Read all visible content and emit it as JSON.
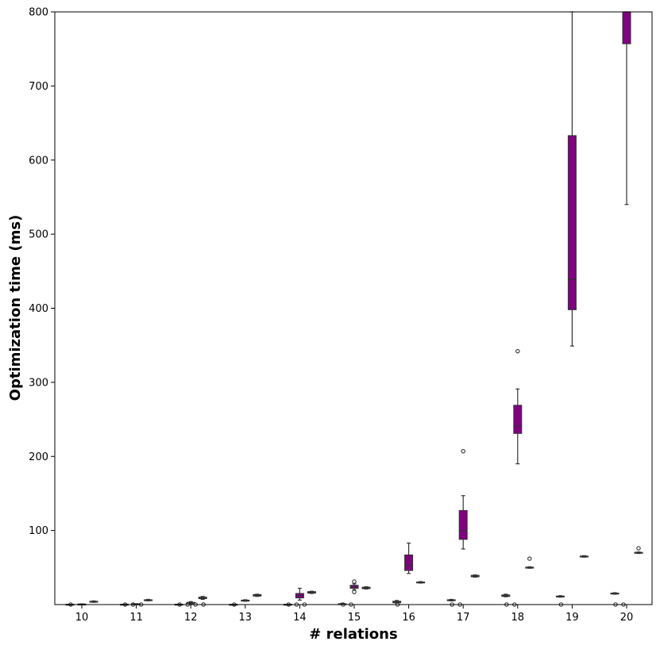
{
  "chart_data": {
    "type": "box",
    "xlabel": "# relations",
    "ylabel": "Optimization time (ms)",
    "ylim": [
      0,
      800
    ],
    "yticks": [
      100,
      200,
      300,
      400,
      500,
      600,
      700,
      800
    ],
    "categories": [
      "10",
      "11",
      "12",
      "13",
      "14",
      "15",
      "16",
      "17",
      "18",
      "19",
      "20"
    ],
    "grid": false,
    "box_color": "#800080",
    "edge_color": "#333333",
    "boxes": [
      {
        "group": "10",
        "q1": 0.2,
        "median": 0.3,
        "q3": 0.4,
        "whisker_low": 0.1,
        "whisker_high": 0.5,
        "outliers": []
      },
      {
        "group": "10",
        "q1": 0.5,
        "median": 0.6,
        "q3": 0.7,
        "whisker_low": 0.3,
        "whisker_high": 0.9,
        "outliers": []
      },
      {
        "group": "10",
        "q1": 3.5,
        "median": 4.0,
        "q3": 4.5,
        "whisker_low": 3.0,
        "whisker_high": 5.0,
        "outliers": []
      },
      {
        "group": "11",
        "q1": 0.3,
        "median": 0.4,
        "q3": 0.5,
        "whisker_low": 0.2,
        "whisker_high": 0.6,
        "outliers": []
      },
      {
        "group": "11",
        "q1": 0.6,
        "median": 0.8,
        "q3": 1.0,
        "whisker_low": 0.4,
        "whisker_high": 1.2,
        "outliers": []
      },
      {
        "group": "11",
        "q1": 5.5,
        "median": 6.0,
        "q3": 6.5,
        "whisker_low": 5.0,
        "whisker_high": 7.0,
        "outliers": []
      },
      {
        "group": "12",
        "q1": 0.3,
        "median": 0.4,
        "q3": 0.5,
        "whisker_low": 0.2,
        "whisker_high": 0.6,
        "outliers": []
      },
      {
        "group": "12",
        "q1": 1.5,
        "median": 2.0,
        "q3": 3.0,
        "whisker_low": 0.8,
        "whisker_high": 4.0,
        "outliers": []
      },
      {
        "group": "12",
        "q1": 8.0,
        "median": 9.0,
        "q3": 10.0,
        "whisker_low": 7.0,
        "whisker_high": 11.0,
        "outliers": []
      },
      {
        "group": "13",
        "q1": 0.1,
        "median": 0.2,
        "q3": 0.3,
        "whisker_low": 0.1,
        "whisker_high": 0.3,
        "outliers": []
      },
      {
        "group": "13",
        "q1": 5.0,
        "median": 5.5,
        "q3": 6.0,
        "whisker_low": 4.5,
        "whisker_high": 6.5,
        "outliers": []
      },
      {
        "group": "13",
        "q1": 11.5,
        "median": 12.5,
        "q3": 13.5,
        "whisker_low": 11.0,
        "whisker_high": 14.0,
        "outliers": []
      },
      {
        "group": "14",
        "q1": 0.2,
        "median": 0.3,
        "q3": 0.4,
        "whisker_low": 0.1,
        "whisker_high": 0.5,
        "outliers": []
      },
      {
        "group": "14",
        "q1": 9.0,
        "median": 12.0,
        "q3": 15.0,
        "whisker_low": 6.0,
        "whisker_high": 22.0,
        "outliers": []
      },
      {
        "group": "14",
        "q1": 15.5,
        "median": 16.5,
        "q3": 17.5,
        "whisker_low": 15.0,
        "whisker_high": 18.0,
        "outliers": []
      },
      {
        "group": "15",
        "q1": 0.5,
        "median": 0.8,
        "q3": 1.2,
        "whisker_low": 0.3,
        "whisker_high": 1.8,
        "outliers": []
      },
      {
        "group": "15",
        "q1": 22.0,
        "median": 24.0,
        "q3": 26.0,
        "whisker_low": 20.0,
        "whisker_high": 28.0,
        "outliers": [
          17,
          31
        ]
      },
      {
        "group": "15",
        "q1": 21.5,
        "median": 22.5,
        "q3": 23.5,
        "whisker_low": 21.0,
        "whisker_high": 24.0,
        "outliers": []
      },
      {
        "group": "16",
        "q1": 2.5,
        "median": 3.5,
        "q3": 4.5,
        "whisker_low": 2.0,
        "whisker_high": 5.5,
        "outliers": []
      },
      {
        "group": "16",
        "q1": 46.0,
        "median": 53.0,
        "q3": 67.0,
        "whisker_low": 42.0,
        "whisker_high": 83.0,
        "outliers": []
      },
      {
        "group": "16",
        "q1": 29.5,
        "median": 30.0,
        "q3": 30.5,
        "whisker_low": 29.0,
        "whisker_high": 31.0,
        "outliers": []
      },
      {
        "group": "17",
        "q1": 5.5,
        "median": 6.0,
        "q3": 6.5,
        "whisker_low": 5.0,
        "whisker_high": 7.0,
        "outliers": []
      },
      {
        "group": "17",
        "q1": 88.0,
        "median": 100.0,
        "q3": 127.0,
        "whisker_low": 75.0,
        "whisker_high": 147.0,
        "outliers": [
          207
        ]
      },
      {
        "group": "17",
        "q1": 37.5,
        "median": 38.5,
        "q3": 39.5,
        "whisker_low": 37.0,
        "whisker_high": 40.0,
        "outliers": []
      },
      {
        "group": "18",
        "q1": 11.0,
        "median": 12.0,
        "q3": 13.0,
        "whisker_low": 10.5,
        "whisker_high": 14.0,
        "outliers": []
      },
      {
        "group": "18",
        "q1": 231.0,
        "median": 241.0,
        "q3": 269.0,
        "whisker_low": 190.0,
        "whisker_high": 291.0,
        "outliers": [
          342
        ]
      },
      {
        "group": "18",
        "q1": 49.5,
        "median": 50.0,
        "q3": 50.5,
        "whisker_low": 49.0,
        "whisker_high": 51.0,
        "outliers": [
          62
        ]
      },
      {
        "group": "19",
        "q1": 10.5,
        "median": 11.0,
        "q3": 11.5,
        "whisker_low": 10.0,
        "whisker_high": 12.0,
        "outliers": []
      },
      {
        "group": "19",
        "q1": 398.0,
        "median": 439.0,
        "q3": 633.0,
        "whisker_low": 349.0,
        "whisker_high": 800.0,
        "outliers": []
      },
      {
        "group": "19",
        "q1": 64.5,
        "median": 65.0,
        "q3": 65.5,
        "whisker_low": 64.0,
        "whisker_high": 66.0,
        "outliers": []
      },
      {
        "group": "20",
        "q1": 14.5,
        "median": 15.0,
        "q3": 15.5,
        "whisker_low": 14.0,
        "whisker_high": 16.0,
        "outliers": []
      },
      {
        "group": "20",
        "q1": 757.0,
        "median": 800.0,
        "q3": 800.0,
        "whisker_low": 540.0,
        "whisker_high": 800.0,
        "outliers": []
      },
      {
        "group": "20",
        "q1": 69.5,
        "median": 70.0,
        "q3": 70.5,
        "whisker_low": 69.0,
        "whisker_high": 71.0,
        "outliers": [
          76
        ]
      }
    ],
    "near_zero_outliers": [
      {
        "group": "10",
        "values": [
          0.05
        ]
      },
      {
        "group": "11",
        "values": [
          0.05,
          0.05,
          0.05
        ]
      },
      {
        "group": "12",
        "values": [
          0.05,
          0.05,
          0.05,
          0.1
        ]
      },
      {
        "group": "13",
        "values": [
          0.05
        ]
      },
      {
        "group": "14",
        "values": [
          0.05,
          0.05,
          0.05
        ]
      },
      {
        "group": "15",
        "values": [
          0.05,
          0.05
        ]
      },
      {
        "group": "16",
        "values": [
          0.05
        ]
      },
      {
        "group": "17",
        "values": [
          0.05,
          0.05
        ]
      },
      {
        "group": "18",
        "values": [
          0.05,
          0.05
        ]
      },
      {
        "group": "19",
        "values": [
          0.05
        ]
      },
      {
        "group": "20",
        "values": [
          0.05,
          0.05
        ]
      }
    ]
  }
}
